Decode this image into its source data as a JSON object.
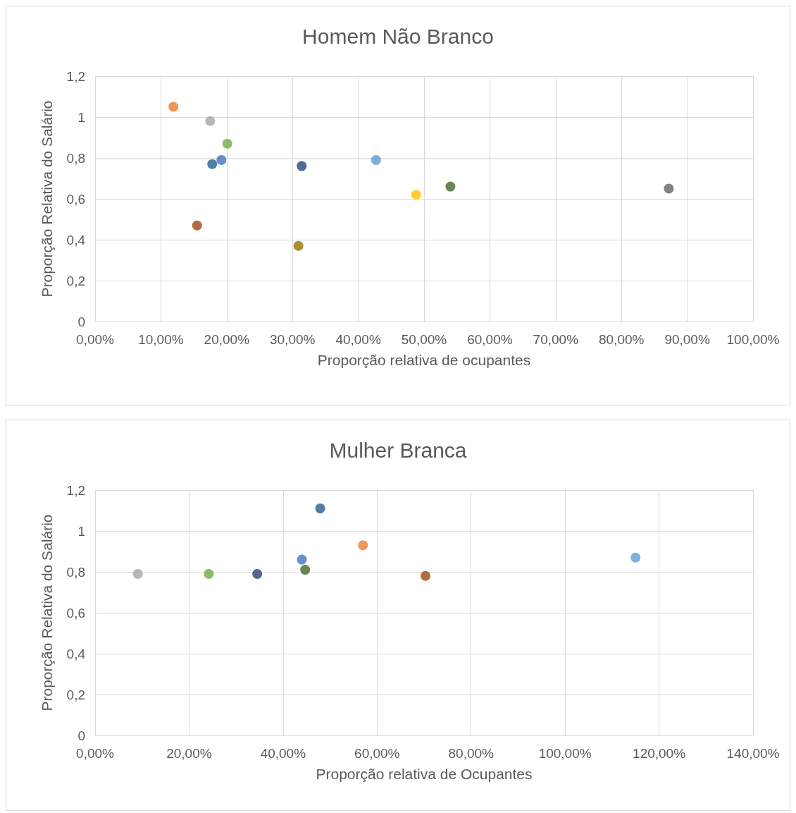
{
  "chart_data": [
    {
      "type": "scatter",
      "title": "Homem Não Branco",
      "xlabel": "Proporção relativa de ocupantes",
      "ylabel": "Proporção Relativa do Salário",
      "x": [
        11.9,
        17.5,
        20.1,
        19.2,
        17.8,
        15.5,
        31.4,
        30.9,
        42.7,
        48.8,
        54.0,
        87.2
      ],
      "values": [
        1.05,
        0.98,
        0.87,
        0.79,
        0.77,
        0.47,
        0.76,
        0.37,
        0.79,
        0.62,
        0.66,
        0.65
      ],
      "yticks": [
        {
          "value": 0,
          "label": "0"
        },
        {
          "value": 0.2,
          "label": "0,2"
        },
        {
          "value": 0.4,
          "label": "0,4"
        },
        {
          "value": 0.6,
          "label": "0,6"
        },
        {
          "value": 0.8,
          "label": "0,8"
        },
        {
          "value": 1,
          "label": "1"
        },
        {
          "value": 1.2,
          "label": "1,2"
        }
      ],
      "colors": [
        "#ed7d31",
        "#a5a5a5",
        "#70ad47",
        "#4472c4",
        "#255e91",
        "#9e480e",
        "#264478",
        "#997300",
        "#5b9bd5",
        "#ffc000",
        "#43682b",
        "#636363"
      ],
      "xlim": [
        0,
        100
      ],
      "ylim": [
        0,
        1.2
      ],
      "grid": true,
      "marker": "circle",
      "xticks": [
        {
          "value": 0,
          "label": "0,00%"
        },
        {
          "value": 10,
          "label": "10,00%"
        },
        {
          "value": 20,
          "label": "20,00%"
        },
        {
          "value": 30,
          "label": "30,00%"
        },
        {
          "value": 40,
          "label": "40,00%"
        },
        {
          "value": 50,
          "label": "50,00%"
        },
        {
          "value": 60,
          "label": "60,00%"
        },
        {
          "value": 70,
          "label": "70,00%"
        },
        {
          "value": 80,
          "label": "80,00%"
        },
        {
          "value": 90,
          "label": "90,00%"
        },
        {
          "value": 100,
          "label": "100,00%"
        }
      ]
    },
    {
      "type": "scatter",
      "title": "Mulher Branca",
      "xlabel": "Proporção relativa de Ocupantes",
      "ylabel": "Proporção Relativa do Salário",
      "x": [
        9.1,
        24.2,
        34.5,
        44.0,
        44.7,
        47.9,
        57.0,
        70.3,
        115.0
      ],
      "values": [
        0.79,
        0.79,
        0.79,
        0.86,
        0.81,
        1.11,
        0.93,
        0.78,
        0.87
      ],
      "colors": [
        "#a5a5a5",
        "#70ad47",
        "#264478",
        "#4472c4",
        "#43682b",
        "#255e91",
        "#ed7d31",
        "#9e480e",
        "#5b9bd5"
      ],
      "xlim": [
        0,
        140
      ],
      "xticks": [
        {
          "value": 0,
          "label": "0,00%"
        },
        {
          "value": 20,
          "label": "20,00%"
        },
        {
          "value": 40,
          "label": "40,00%"
        },
        {
          "value": 60,
          "label": "60,00%"
        },
        {
          "value": 80,
          "label": "80,00%"
        },
        {
          "value": 100,
          "label": "100,00%"
        },
        {
          "value": 120,
          "label": "120,00%"
        },
        {
          "value": 140,
          "label": "140,00%"
        }
      ],
      "ylim": [
        0,
        1.2
      ],
      "yticks": [
        {
          "value": 0,
          "label": "0"
        },
        {
          "value": 0.2,
          "label": "0,2"
        },
        {
          "value": 0.4,
          "label": "0,4"
        },
        {
          "value": 0.6,
          "label": "0,6"
        },
        {
          "value": 0.8,
          "label": "0,8"
        },
        {
          "value": 1,
          "label": "1"
        },
        {
          "value": 1.2,
          "label": "1,2"
        }
      ],
      "grid": true,
      "marker": "circle"
    }
  ]
}
